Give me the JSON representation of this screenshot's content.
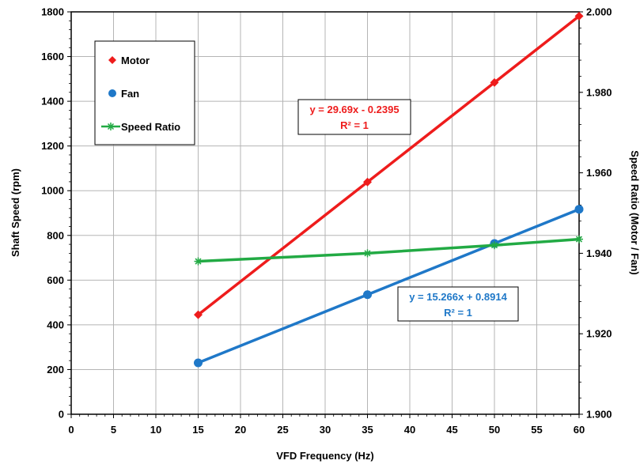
{
  "chart_data": {
    "type": "line",
    "xlabel": "VFD Frequency (Hz)",
    "ylabel_left": "Shaft Speed (rpm)",
    "ylabel_right": "Speed Ratio (Motor / Fan)",
    "xlim": [
      0,
      60
    ],
    "ylim_left": [
      0,
      1800
    ],
    "ylim_right": [
      1.9,
      2.0
    ],
    "x_ticks": [
      "0",
      "5",
      "10",
      "15",
      "20",
      "25",
      "30",
      "35",
      "40",
      "45",
      "50",
      "55",
      "60"
    ],
    "y_left_ticks": [
      "0",
      "200",
      "400",
      "600",
      "800",
      "1000",
      "1200",
      "1400",
      "1600",
      "1800"
    ],
    "y_right_ticks": [
      "1.900",
      "1.920",
      "1.940",
      "1.960",
      "1.980",
      "2.000"
    ],
    "grid": true,
    "legend_position": "top-left",
    "series": [
      {
        "name": "Motor",
        "axis": "left",
        "marker": "diamond",
        "color": "#ee1c1c",
        "x": [
          15,
          35,
          50,
          60
        ],
        "y": [
          445,
          1039,
          1484,
          1781
        ]
      },
      {
        "name": "Fan",
        "axis": "left",
        "marker": "circle",
        "color": "#1f78c8",
        "x": [
          15,
          35,
          50,
          60
        ],
        "y": [
          230,
          535,
          764,
          917
        ]
      },
      {
        "name": "Speed Ratio",
        "axis": "right",
        "marker": "asterisk",
        "color": "#22aa44",
        "x": [
          15,
          35,
          50,
          60
        ],
        "y": [
          1.938,
          1.94,
          1.942,
          1.9435
        ]
      }
    ],
    "annotations": [
      {
        "series": "Motor",
        "line1": "y = 29.69x - 0.2395",
        "line2": "R² = 1",
        "color": "#ee1c1c"
      },
      {
        "series": "Fan",
        "line1": "y = 15.266x + 0.8914",
        "line2": "R² = 1",
        "color": "#1f78c8"
      }
    ]
  }
}
